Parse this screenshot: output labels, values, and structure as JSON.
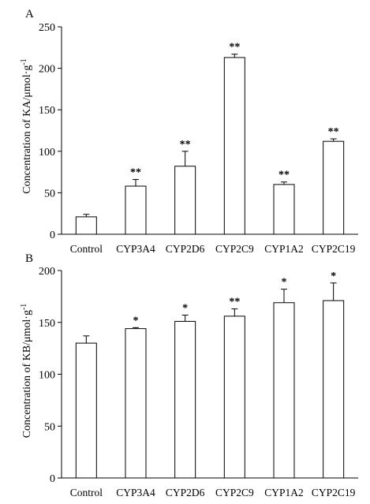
{
  "chart_data": [
    {
      "type": "bar",
      "panel_label": "A",
      "categories": [
        "Control",
        "CYP3A4",
        "CYP2D6",
        "CYP2C9",
        "CYP1A2",
        "CYP2C19"
      ],
      "values": [
        21,
        58,
        82,
        213,
        60,
        112
      ],
      "errors": [
        3,
        8,
        18,
        4,
        3,
        3
      ],
      "significance": [
        "",
        "**",
        "**",
        "**",
        "**",
        "**"
      ],
      "ylabel_prefix": "Concentration of KA/μmol·g",
      "ylabel_sup": "-1",
      "ylim": [
        0,
        250
      ],
      "yticks": [
        0,
        50,
        100,
        150,
        200,
        250
      ]
    },
    {
      "type": "bar",
      "panel_label": "B",
      "categories": [
        "Control",
        "CYP3A4",
        "CYP2D6",
        "CYP2C9",
        "CYP1A2",
        "CYP2C19"
      ],
      "values": [
        130,
        144,
        151,
        156,
        169,
        171
      ],
      "errors": [
        7,
        1,
        6,
        7,
        13,
        17
      ],
      "significance": [
        "",
        "*",
        "*",
        "**",
        "*",
        "*"
      ],
      "ylabel_prefix": "Concentration of KB/μmol·g",
      "ylabel_sup": "-1",
      "ylim": [
        0,
        200
      ],
      "yticks": [
        0,
        50,
        100,
        150,
        200
      ]
    }
  ]
}
